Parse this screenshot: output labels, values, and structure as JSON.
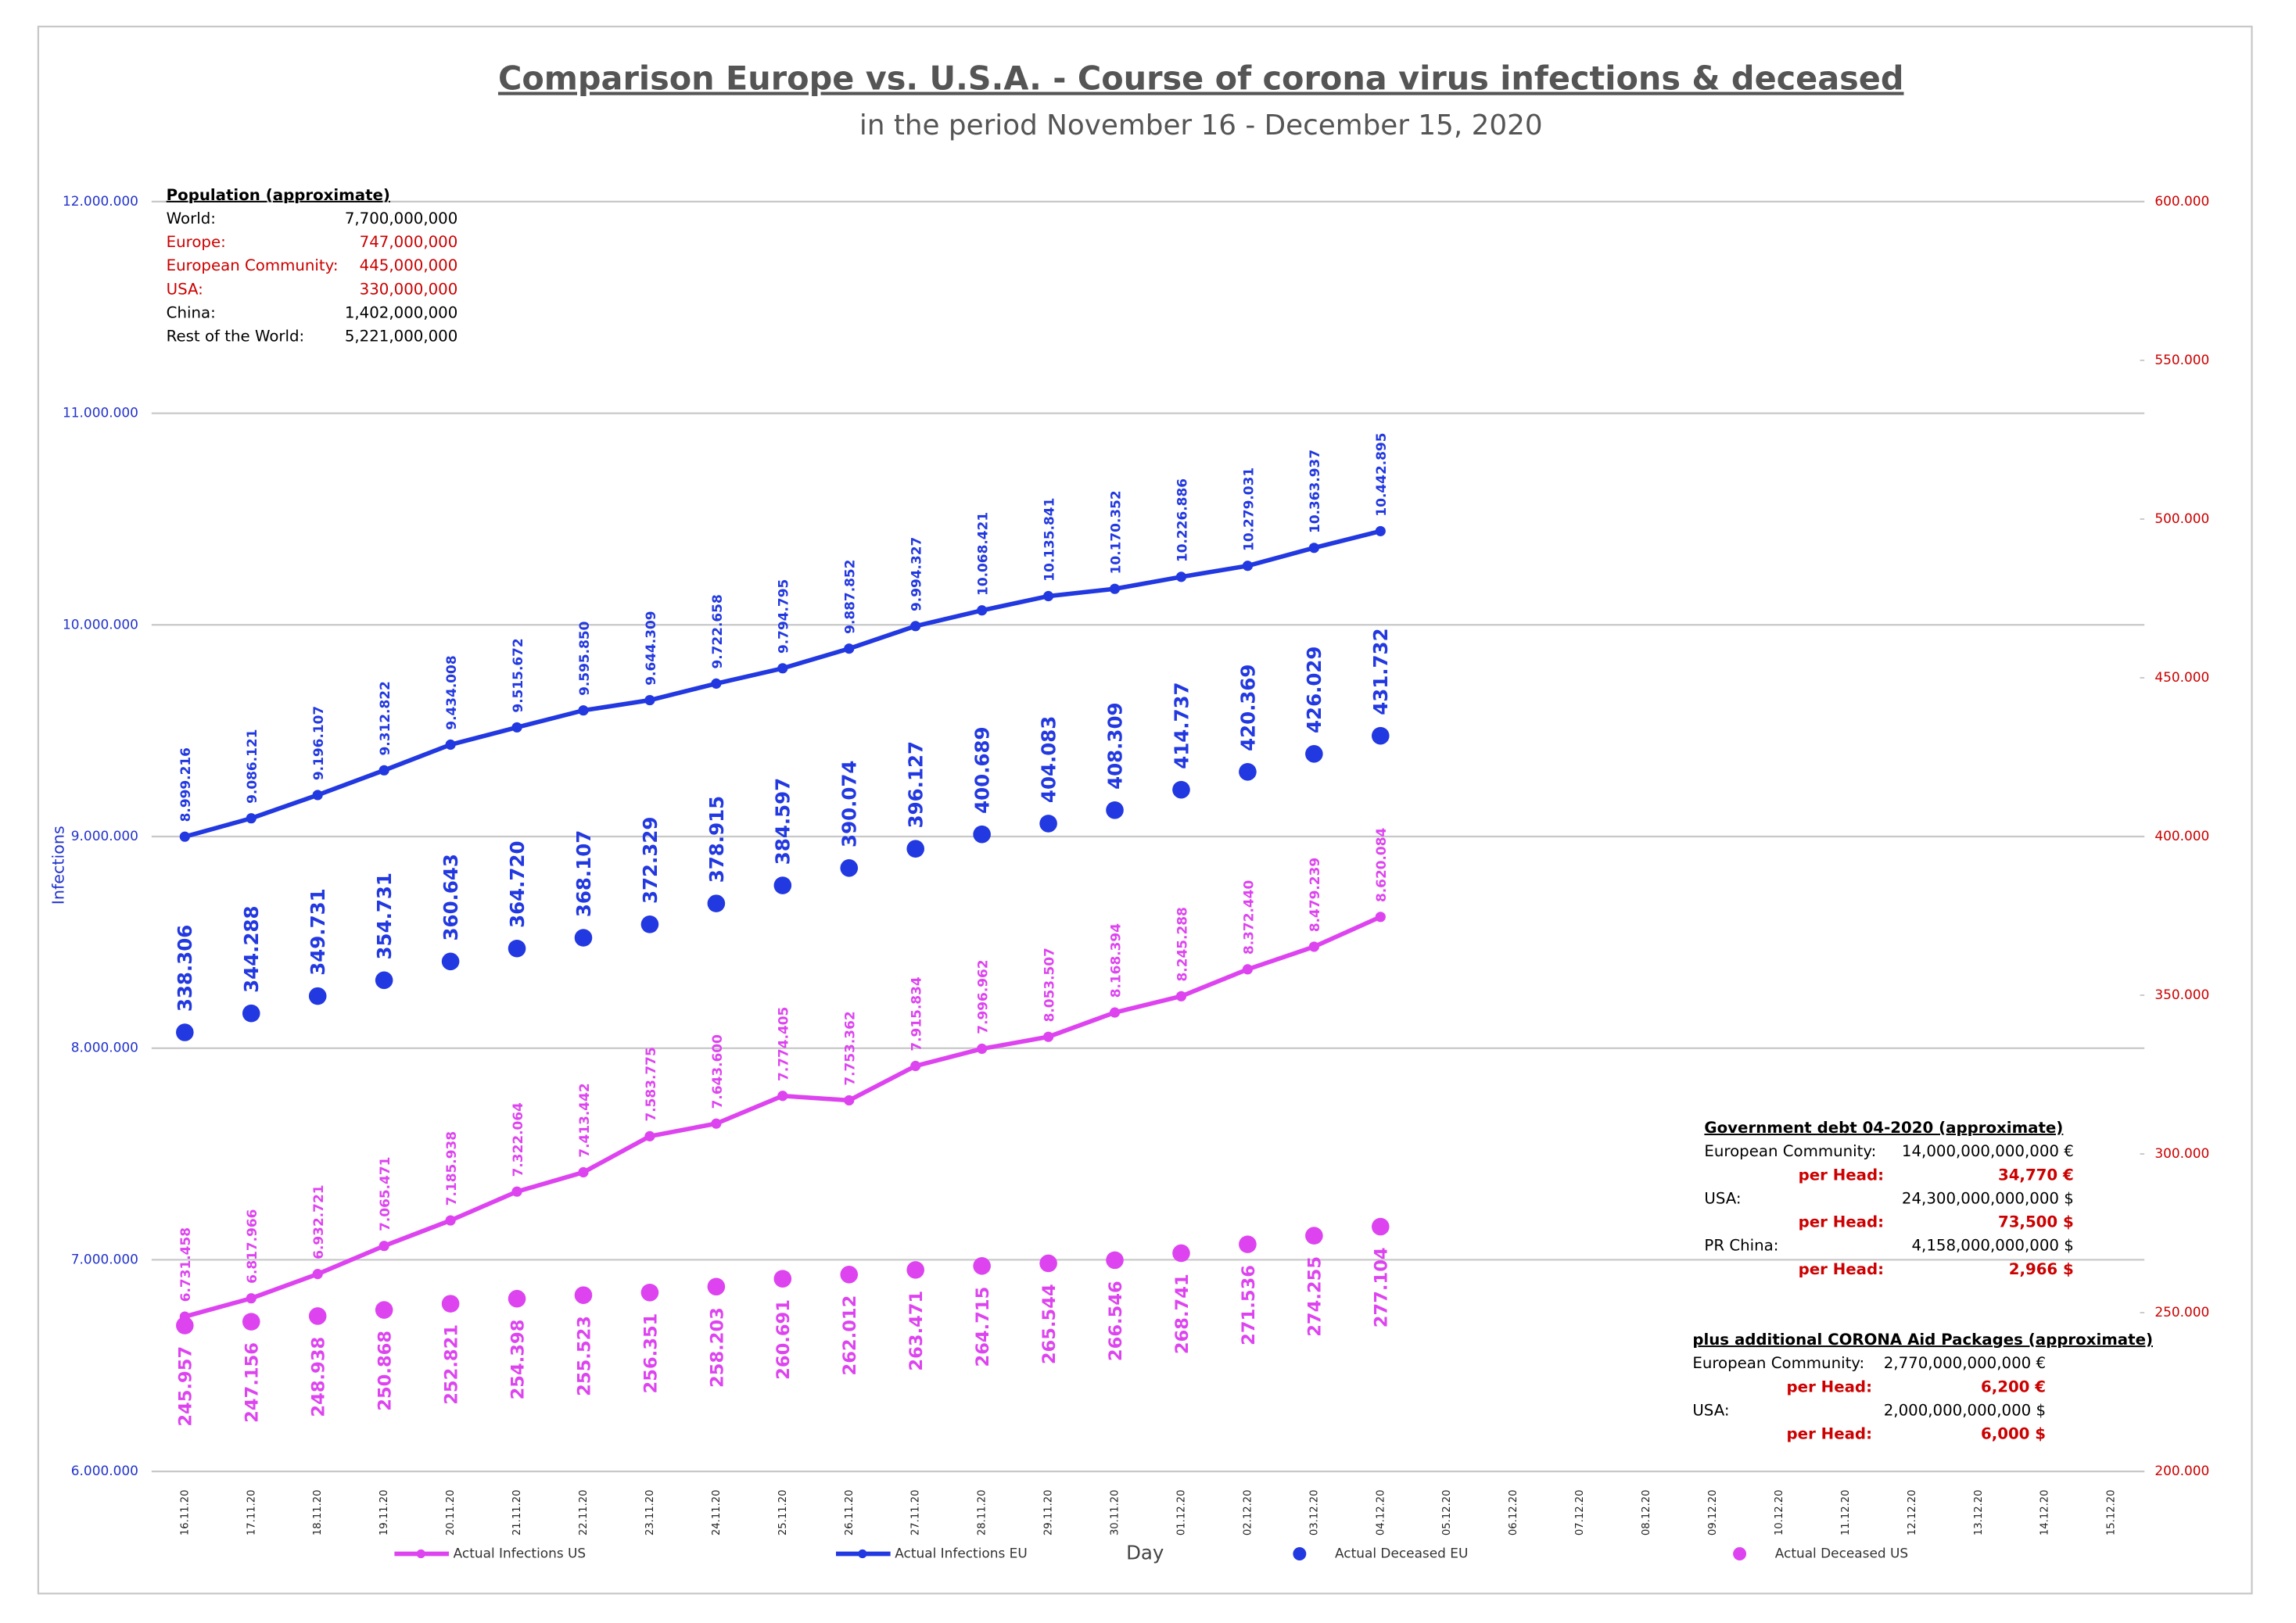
{
  "chart_data": {
    "type": "line",
    "title": "Comparison Europe vs. U.S.A. - Course of corona virus infections & deceased",
    "subtitle": "in the period November 16 - December 15, 2020",
    "y_label": "Infections",
    "x_label": "Day",
    "categories": [
      "16.11.20",
      "17.11.20",
      "18.11.20",
      "19.11.20",
      "20.11.20",
      "21.11.20",
      "22.11.20",
      "23.11.20",
      "24.11.20",
      "25.11.20",
      "26.11.20",
      "27.11.20",
      "28.11.20",
      "29.11.20",
      "30.11.20",
      "01.12.20",
      "02.12.20",
      "03.12.20",
      "04.12.20",
      "05.12.20",
      "06.12.20",
      "07.12.20",
      "08.12.20",
      "09.12.20",
      "10.12.20",
      "11.12.20",
      "12.12.20",
      "13.12.20",
      "14.12.20",
      "15.12.20"
    ],
    "ylim": [
      6000000,
      12000000
    ],
    "yticks": [
      {
        "value": 6000000,
        "label": "6.000.000"
      },
      {
        "value": 7000000,
        "label": "7.000.000"
      },
      {
        "value": 8000000,
        "label": "8.000.000"
      },
      {
        "value": 9000000,
        "label": "9.000.000"
      },
      {
        "value": 10000000,
        "label": "10.000.000"
      },
      {
        "value": 11000000,
        "label": "11.000.000"
      },
      {
        "value": 12000000,
        "label": "12.000.000"
      }
    ],
    "y2lim": [
      200000,
      600000
    ],
    "y2ticks": [
      {
        "value": 200000,
        "label": "200.000"
      },
      {
        "value": 250000,
        "label": "250.000"
      },
      {
        "value": 300000,
        "label": "300.000"
      },
      {
        "value": 350000,
        "label": "350.000"
      },
      {
        "value": 400000,
        "label": "400.000"
      },
      {
        "value": 450000,
        "label": "450.000"
      },
      {
        "value": 500000,
        "label": "500.000"
      },
      {
        "value": 550000,
        "label": "550.000"
      },
      {
        "value": 600000,
        "label": "600.000"
      }
    ],
    "grid": true,
    "series": [
      {
        "name": "Actual Infections US",
        "color": "#dd44f0",
        "line": true,
        "values": [
          6731458,
          6817966,
          6932721,
          7065471,
          7185938,
          7322064,
          7413442,
          7583775,
          7643600,
          7774405,
          7753362,
          7915834,
          7996962,
          8053507,
          8168394,
          8245288,
          8372440,
          8479239,
          8620084,
          null,
          null,
          null,
          null,
          null,
          null,
          null,
          null,
          null,
          null,
          null
        ],
        "value_labels": [
          "6.731.458",
          "6.817.966",
          "6.932.721",
          "7.065.471",
          "7.185.938",
          "7.322.064",
          "7.413.442",
          "7.583.775",
          "7.643.600",
          "7.774.405",
          "7.753.362",
          "7.915.834",
          "7.996.962",
          "8.053.507",
          "8.168.394",
          "8.245.288",
          "8.372.440",
          "8.479.239",
          "8.620.084",
          null,
          null,
          null,
          null,
          null,
          null,
          null,
          null,
          null,
          null,
          null
        ]
      },
      {
        "name": "Actual Infections EU",
        "color": "#2238e0",
        "line": true,
        "values": [
          8999216,
          9086121,
          9196107,
          9312822,
          9434008,
          9515672,
          9595850,
          9644309,
          9722658,
          9794795,
          9887852,
          9994327,
          10068421,
          10135841,
          10170352,
          10226886,
          10279031,
          10363937,
          10442895,
          null,
          null,
          null,
          null,
          null,
          null,
          null,
          null,
          null,
          null,
          null
        ],
        "value_labels": [
          "8.999.216",
          "9.086.121",
          "9.196.107",
          "9.312.822",
          "9.434.008",
          "9.515.672",
          "9.595.850",
          "9.644.309",
          "9.722.658",
          "9.794.795",
          "9.887.852",
          "9.994.327",
          "10.068.421",
          "10.135.841",
          "10.170.352",
          "10.226.886",
          "10.279.031",
          "10.363.937",
          "10.442.895",
          null,
          null,
          null,
          null,
          null,
          null,
          null,
          null,
          null,
          null,
          null
        ]
      },
      {
        "name": "Actual Deceased EU",
        "color": "#2238e0",
        "line": false,
        "axis": "y2",
        "values": [
          338306,
          344288,
          349731,
          354731,
          360643,
          364720,
          368107,
          372329,
          378915,
          384597,
          390074,
          396127,
          400689,
          404083,
          408309,
          414737,
          420369,
          426029,
          431732,
          null,
          null,
          null,
          null,
          null,
          null,
          null,
          null,
          null,
          null,
          null
        ],
        "value_labels": [
          "338.306",
          "344.288",
          "349.731",
          "354.731",
          "360.643",
          "364.720",
          "368.107",
          "372.329",
          "378.915",
          "384.597",
          "390.074",
          "396.127",
          "400.689",
          "404.083",
          "408.309",
          "414.737",
          "420.369",
          "426.029",
          "431.732",
          null,
          null,
          null,
          null,
          null,
          null,
          null,
          null,
          null,
          null,
          null
        ]
      },
      {
        "name": "Actual Deceased US",
        "color": "#dd44f0",
        "line": false,
        "axis": "y2",
        "values": [
          245957,
          247156,
          248938,
          250868,
          252821,
          254398,
          255523,
          256351,
          258203,
          260691,
          262012,
          263471,
          264715,
          265544,
          266546,
          268741,
          271536,
          274255,
          277104,
          null,
          null,
          null,
          null,
          null,
          null,
          null,
          null,
          null,
          null,
          null
        ],
        "value_labels": [
          "245.957",
          "247.156",
          "248.938",
          "250.868",
          "252.821",
          "254.398",
          "255.523",
          "256.351",
          "258.203",
          "260.691",
          "262.012",
          "263.471",
          "264.715",
          "265.544",
          "266.546",
          "268.741",
          "271.536",
          "274.255",
          "277.104",
          null,
          null,
          null,
          null,
          null,
          null,
          null,
          null,
          null,
          null,
          null
        ]
      }
    ],
    "annotations": [
      {
        "title": "Population (approximate)",
        "rows": [
          {
            "label": "World:",
            "value": "7,700,000,000",
            "color": "#000000"
          },
          {
            "label": "Europe:",
            "value": "747,000,000",
            "color": "#cc0000"
          },
          {
            "label": "European Community:",
            "value": "445,000,000",
            "color": "#cc0000"
          },
          {
            "label": "USA:",
            "value": "330,000,000",
            "color": "#cc0000"
          },
          {
            "label": "China:",
            "value": "1,402,000,000",
            "color": "#000000"
          },
          {
            "label": "Rest of the World:",
            "value": "5,221,000,000",
            "color": "#000000"
          }
        ]
      },
      {
        "title": "Government debt 04-2020 (approximate)",
        "rows": [
          {
            "label": "European Community:",
            "value": "14,000,000,000,000 €",
            "color": "#000000"
          },
          {
            "label": "per Head:",
            "value": "34,770 €",
            "color": "#cc0000"
          },
          {
            "label": "USA:",
            "value": "24,300,000,000,000 $",
            "color": "#000000"
          },
          {
            "label": "per Head:",
            "value": "73,500 $",
            "color": "#cc0000"
          },
          {
            "label": "PR China:",
            "value": "4,158,000,000,000 $",
            "color": "#000000"
          },
          {
            "label": "per Head:",
            "value": "2,966 $",
            "color": "#cc0000"
          }
        ]
      },
      {
        "title": "plus additional CORONA Aid Packages (approximate)",
        "rows": [
          {
            "label": "European Community:",
            "value": "2,770,000,000,000 €",
            "color": "#000000"
          },
          {
            "label": "per Head:",
            "value": "6,200 €",
            "color": "#cc0000"
          },
          {
            "label": "USA:",
            "value": "2,000,000,000,000 $",
            "color": "#000000"
          },
          {
            "label": "per Head:",
            "value": "6,000 $",
            "color": "#cc0000"
          }
        ]
      }
    ]
  }
}
